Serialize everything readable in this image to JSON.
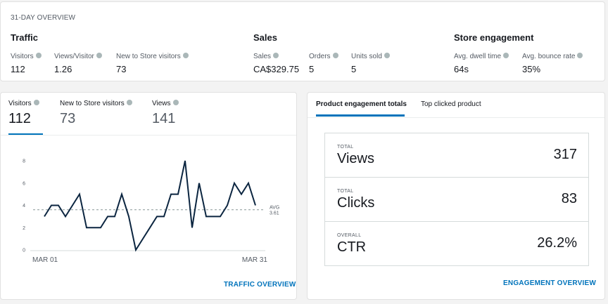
{
  "overview": {
    "label": "31-DAY OVERVIEW",
    "traffic": {
      "title": "Traffic",
      "metrics": [
        {
          "label": "Visitors",
          "value": "112"
        },
        {
          "label": "Views/Visitor",
          "value": "1.26"
        },
        {
          "label": "New to Store visitors",
          "value": "73"
        }
      ]
    },
    "sales": {
      "title": "Sales",
      "metrics": [
        {
          "label": "Sales",
          "value": "CA$329.75"
        },
        {
          "label": "Orders",
          "value": "5"
        },
        {
          "label": "Units sold",
          "value": "5"
        }
      ]
    },
    "engagement": {
      "title": "Store engagement",
      "metrics": [
        {
          "label": "Avg. dwell time",
          "value": "64s"
        },
        {
          "label": "Avg. bounce rate",
          "value": "35%"
        }
      ]
    }
  },
  "traffic_chart": {
    "tabs": [
      {
        "label": "Visitors",
        "value": "112",
        "active": true
      },
      {
        "label": "New to Store visitors",
        "value": "73",
        "active": false
      },
      {
        "label": "Views",
        "value": "141",
        "active": false
      }
    ],
    "footer_link": "TRAFFIC OVERVIEW"
  },
  "chart_data": {
    "type": "line",
    "x_labels": [
      "MAR 01",
      "MAR 31"
    ],
    "y_ticks": [
      0,
      2,
      4,
      6,
      8
    ],
    "ylim": [
      0,
      8
    ],
    "series": [
      {
        "values": [
          3,
          4,
          4,
          3,
          4,
          5,
          2,
          2,
          2,
          3,
          3,
          5,
          3,
          0,
          1,
          2,
          3,
          3,
          5,
          5,
          8,
          2,
          6,
          3,
          3,
          3,
          4,
          6,
          5,
          6,
          4
        ]
      }
    ],
    "avg": {
      "label": "AVG",
      "value": "3.61"
    },
    "line_color": "#0b2540",
    "avg_color": "#879596"
  },
  "engagement_card": {
    "tabs": [
      {
        "label": "Product engagement totals",
        "active": true
      },
      {
        "label": "Top clicked product",
        "active": false
      }
    ],
    "rows": [
      {
        "caption": "TOTAL",
        "name": "Views",
        "value": "317"
      },
      {
        "caption": "TOTAL",
        "name": "Clicks",
        "value": "83"
      },
      {
        "caption": "OVERALL",
        "name": "CTR",
        "value": "26.2%"
      }
    ],
    "footer_link": "ENGAGEMENT OVERVIEW"
  }
}
